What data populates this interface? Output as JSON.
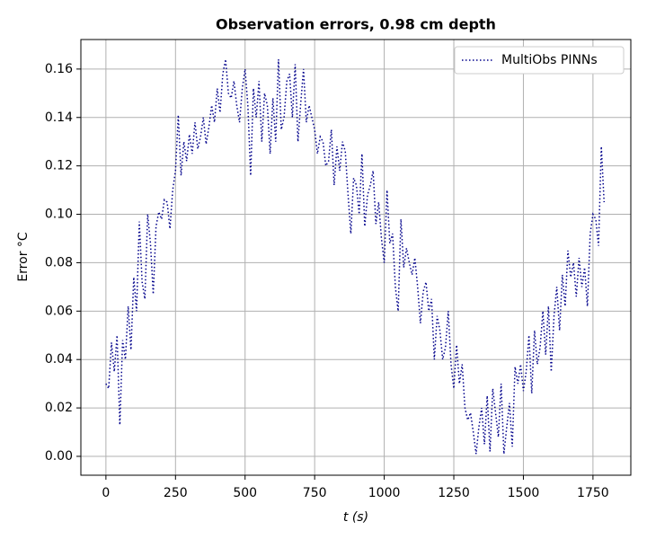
{
  "chart_data": {
    "type": "line",
    "title": "Observation errors, 0.98 cm depth",
    "x_label": "t (s)",
    "y_label": "Error °C",
    "x": [
      0,
      10,
      20,
      30,
      40,
      50,
      60,
      70,
      80,
      90,
      100,
      110,
      120,
      130,
      140,
      150,
      160,
      170,
      180,
      190,
      200,
      210,
      220,
      230,
      240,
      250,
      260,
      270,
      280,
      290,
      300,
      310,
      320,
      330,
      340,
      350,
      360,
      370,
      380,
      390,
      400,
      410,
      420,
      430,
      440,
      450,
      460,
      470,
      480,
      490,
      500,
      510,
      520,
      530,
      540,
      550,
      560,
      570,
      580,
      590,
      600,
      610,
      620,
      630,
      640,
      650,
      660,
      670,
      680,
      690,
      700,
      710,
      720,
      730,
      740,
      750,
      760,
      770,
      780,
      790,
      800,
      810,
      820,
      830,
      840,
      850,
      860,
      870,
      880,
      890,
      900,
      910,
      920,
      930,
      940,
      950,
      960,
      970,
      980,
      990,
      1000,
      1010,
      1020,
      1030,
      1040,
      1050,
      1060,
      1070,
      1080,
      1090,
      1100,
      1110,
      1120,
      1130,
      1140,
      1150,
      1160,
      1170,
      1180,
      1190,
      1200,
      1210,
      1220,
      1230,
      1240,
      1250,
      1260,
      1270,
      1280,
      1290,
      1300,
      1310,
      1320,
      1330,
      1340,
      1350,
      1360,
      1370,
      1380,
      1390,
      1400,
      1410,
      1420,
      1430,
      1440,
      1450,
      1460,
      1470,
      1480,
      1490,
      1500,
      1510,
      1520,
      1530,
      1540,
      1550,
      1560,
      1570,
      1580,
      1590,
      1600,
      1610,
      1620,
      1630,
      1640,
      1650,
      1660,
      1670,
      1680,
      1690,
      1700,
      1710,
      1720,
      1730,
      1740,
      1750,
      1760,
      1770,
      1780,
      1790
    ],
    "series": [
      {
        "name": "MultiObs PINNs",
        "color": "#00008b",
        "linestyle": "dotted",
        "values": [
          0.03,
          0.028,
          0.047,
          0.035,
          0.05,
          0.013,
          0.048,
          0.04,
          0.062,
          0.044,
          0.074,
          0.06,
          0.097,
          0.072,
          0.065,
          0.1,
          0.088,
          0.067,
          0.095,
          0.101,
          0.098,
          0.106,
          0.105,
          0.094,
          0.11,
          0.118,
          0.141,
          0.116,
          0.13,
          0.122,
          0.133,
          0.125,
          0.138,
          0.127,
          0.132,
          0.14,
          0.129,
          0.136,
          0.145,
          0.138,
          0.152,
          0.142,
          0.158,
          0.164,
          0.15,
          0.148,
          0.155,
          0.145,
          0.138,
          0.152,
          0.16,
          0.145,
          0.116,
          0.152,
          0.14,
          0.155,
          0.13,
          0.15,
          0.145,
          0.125,
          0.148,
          0.13,
          0.164,
          0.135,
          0.14,
          0.155,
          0.158,
          0.14,
          0.162,
          0.13,
          0.146,
          0.16,
          0.138,
          0.145,
          0.14,
          0.135,
          0.125,
          0.132,
          0.13,
          0.12,
          0.122,
          0.135,
          0.112,
          0.128,
          0.118,
          0.13,
          0.126,
          0.108,
          0.092,
          0.115,
          0.112,
          0.1,
          0.125,
          0.095,
          0.108,
          0.112,
          0.118,
          0.096,
          0.105,
          0.09,
          0.08,
          0.11,
          0.088,
          0.092,
          0.07,
          0.06,
          0.098,
          0.078,
          0.086,
          0.08,
          0.075,
          0.082,
          0.07,
          0.055,
          0.068,
          0.072,
          0.06,
          0.065,
          0.04,
          0.058,
          0.052,
          0.04,
          0.045,
          0.06,
          0.038,
          0.028,
          0.046,
          0.03,
          0.038,
          0.02,
          0.015,
          0.018,
          0.01,
          0.001,
          0.012,
          0.02,
          0.005,
          0.025,
          0.002,
          0.028,
          0.018,
          0.008,
          0.03,
          0.001,
          0.012,
          0.022,
          0.004,
          0.037,
          0.03,
          0.038,
          0.027,
          0.035,
          0.05,
          0.026,
          0.052,
          0.038,
          0.045,
          0.06,
          0.042,
          0.062,
          0.035,
          0.058,
          0.07,
          0.052,
          0.075,
          0.062,
          0.085,
          0.074,
          0.08,
          0.066,
          0.082,
          0.07,
          0.078,
          0.062,
          0.092,
          0.1,
          0.098,
          0.087,
          0.128,
          0.105
        ]
      }
    ],
    "xlim": [
      -90,
      1886
    ],
    "ylim": [
      -0.0078,
      0.1722
    ],
    "xticks": [
      0,
      250,
      500,
      750,
      1000,
      1250,
      1500,
      1750
    ],
    "yticks": [
      {
        "value": 0,
        "label": "0.00"
      },
      {
        "value": 0.02,
        "label": "0.02"
      },
      {
        "value": 0.04,
        "label": "0.04"
      },
      {
        "value": 0.06,
        "label": "0.06"
      },
      {
        "value": 0.08,
        "label": "0.08"
      },
      {
        "value": 0.1,
        "label": "0.10"
      },
      {
        "value": 0.12,
        "label": "0.12"
      },
      {
        "value": 0.14,
        "label": "0.14"
      },
      {
        "value": 0.16,
        "label": "0.16"
      }
    ],
    "grid": true,
    "legend": "upper right"
  }
}
